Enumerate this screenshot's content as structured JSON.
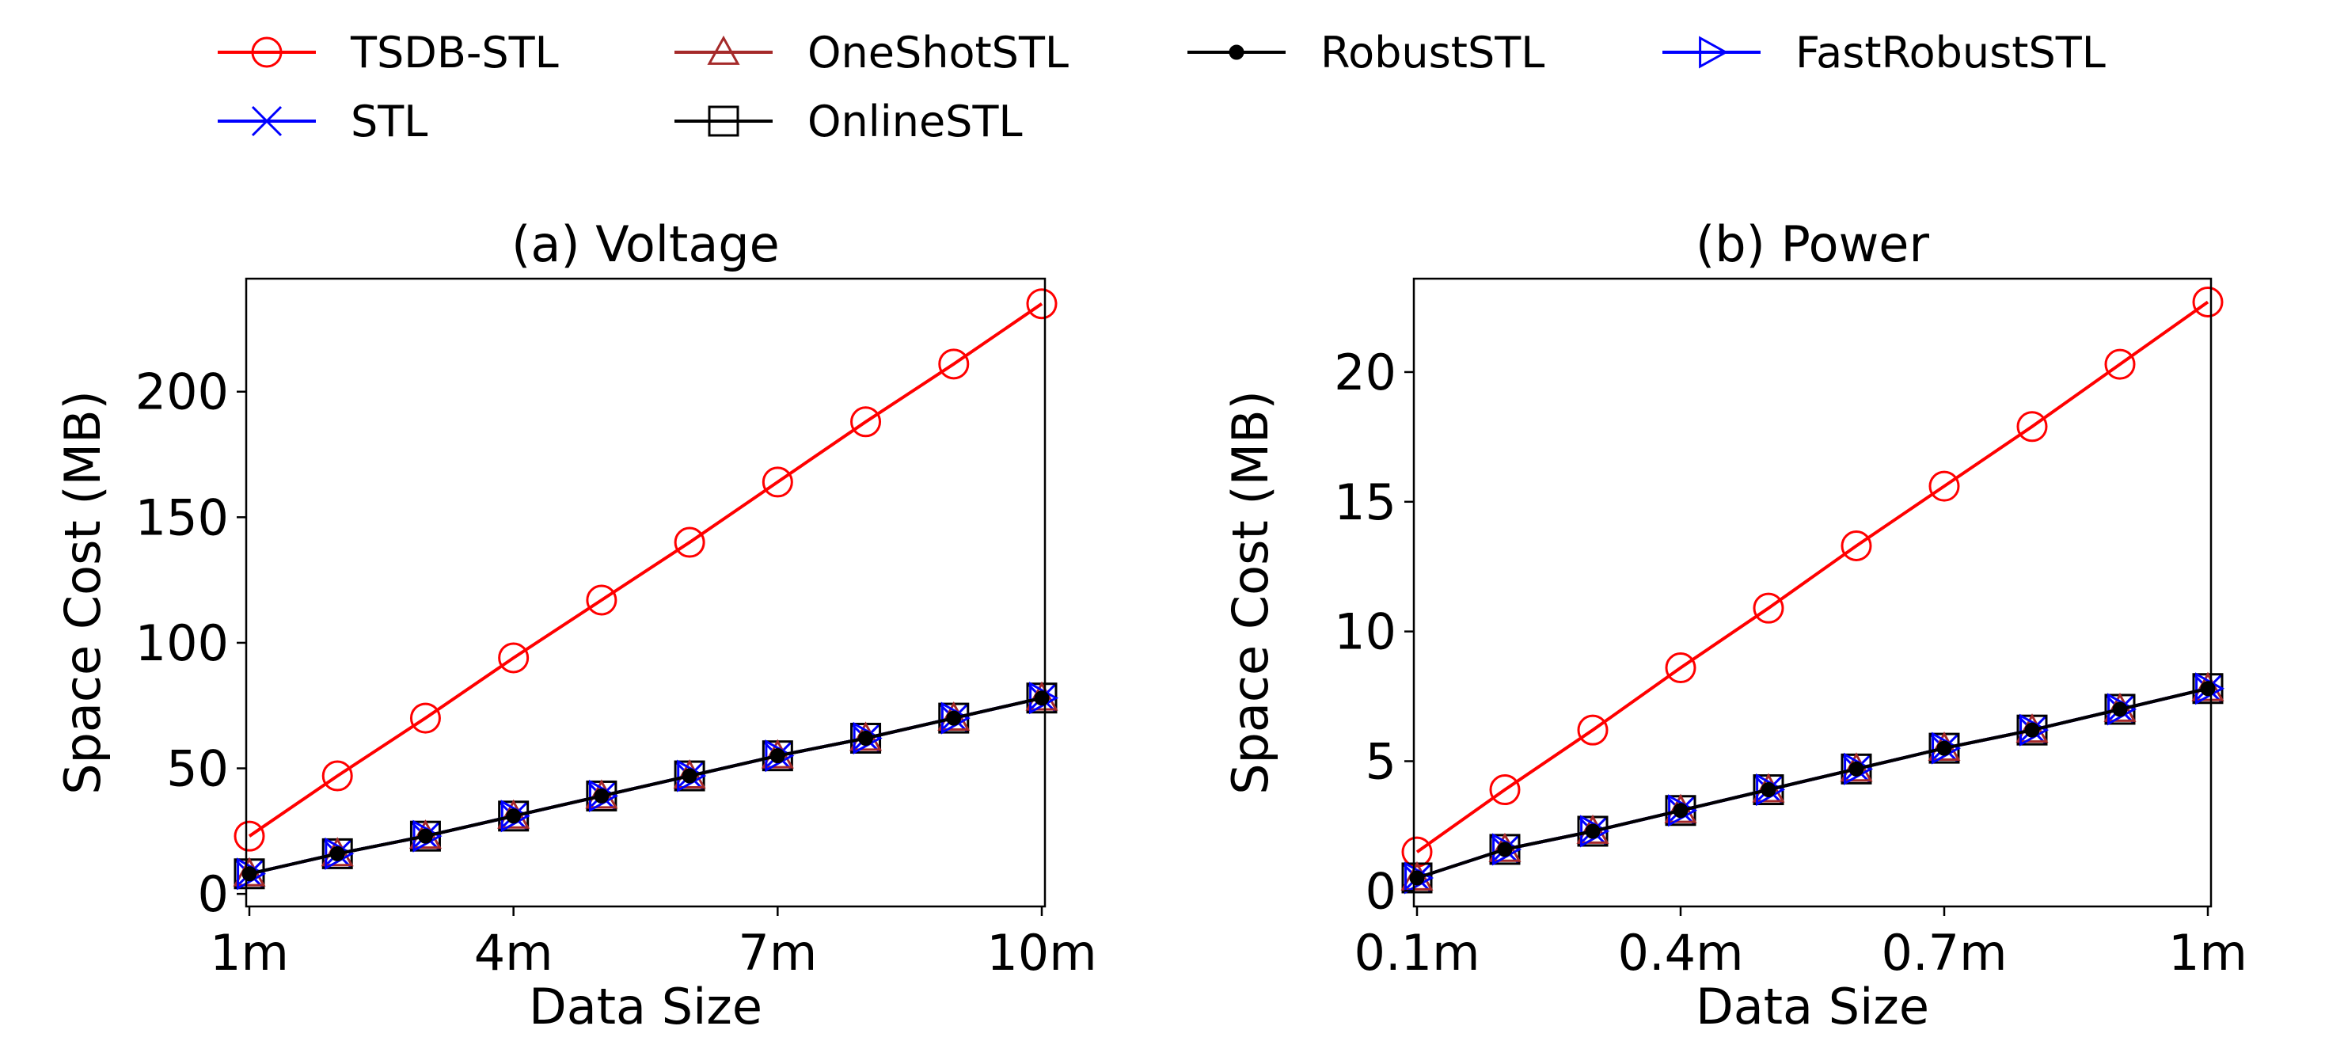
{
  "legend": {
    "placement": "top",
    "entries": [
      {
        "label": "TSDB-STL",
        "color": "#ff0000",
        "marker": "circle-open"
      },
      {
        "label": "OneShotSTL",
        "color": "#a52a2a",
        "marker": "triangle-open"
      },
      {
        "label": "RobustSTL",
        "color": "#000000",
        "marker": "dot-filled"
      },
      {
        "label": "FastRobustSTL",
        "color": "#0000ff",
        "marker": "triangle-right-open"
      },
      {
        "label": "STL",
        "color": "#0000ff",
        "marker": "x"
      },
      {
        "label": "OnlineSTL",
        "color": "#000000",
        "marker": "square-open"
      }
    ]
  },
  "chart_data": [
    {
      "type": "line",
      "title": "(a) Voltage",
      "xlabel": "Data Size",
      "ylabel": "Space Cost (MB)",
      "x": [
        1,
        2,
        3,
        4,
        5,
        6,
        7,
        8,
        9,
        10
      ],
      "xticks": [
        1,
        4,
        7,
        10
      ],
      "xtick_labels": [
        "1m",
        "4m",
        "7m",
        "10m"
      ],
      "xlim": [
        1,
        10
      ],
      "ylim": [
        -5,
        245
      ],
      "yticks": [
        0,
        50,
        100,
        150,
        200
      ],
      "ytick_labels": [
        "0",
        "50",
        "100",
        "150",
        "200"
      ],
      "grid": false,
      "series": [
        {
          "name": "TSDB-STL",
          "values": [
            23,
            47,
            70,
            94,
            117,
            140,
            164,
            188,
            211,
            235
          ]
        },
        {
          "name": "OneShotSTL",
          "values": [
            8,
            16,
            23,
            31,
            39,
            47,
            55,
            62,
            70,
            78
          ]
        },
        {
          "name": "RobustSTL",
          "values": [
            8,
            16,
            23,
            31,
            39,
            47,
            55,
            62,
            70,
            78
          ]
        },
        {
          "name": "FastRobustSTL",
          "values": [
            8,
            16,
            23,
            31,
            39,
            47,
            55,
            62,
            70,
            78
          ]
        },
        {
          "name": "STL",
          "values": [
            8,
            16,
            23,
            31,
            39,
            47,
            55,
            62,
            70,
            78
          ]
        },
        {
          "name": "OnlineSTL",
          "values": [
            8,
            16,
            23,
            31,
            39,
            47,
            55,
            62,
            70,
            78
          ]
        }
      ]
    },
    {
      "type": "line",
      "title": "(b) Power",
      "xlabel": "Data Size",
      "ylabel": "Space Cost (MB)",
      "x": [
        0.1,
        0.2,
        0.3,
        0.4,
        0.5,
        0.6,
        0.7,
        0.8,
        0.9,
        1.0
      ],
      "xticks": [
        0.1,
        0.4,
        0.7,
        1.0
      ],
      "xtick_labels": [
        "0.1m",
        "0.4m",
        "0.7m",
        "1m"
      ],
      "xlim": [
        0.1,
        1.0
      ],
      "ylim": [
        -0.6,
        23.6
      ],
      "yticks": [
        0,
        5,
        10,
        15,
        20
      ],
      "ytick_labels": [
        "0",
        "5",
        "10",
        "15",
        "20"
      ],
      "grid": false,
      "series": [
        {
          "name": "TSDB-STL",
          "values": [
            1.5,
            3.9,
            6.2,
            8.6,
            10.9,
            13.3,
            15.6,
            17.9,
            20.3,
            22.7
          ]
        },
        {
          "name": "OneShotSTL",
          "values": [
            0.5,
            1.6,
            2.3,
            3.1,
            3.9,
            4.7,
            5.5,
            6.2,
            7.0,
            7.8
          ]
        },
        {
          "name": "RobustSTL",
          "values": [
            0.5,
            1.6,
            2.3,
            3.1,
            3.9,
            4.7,
            5.5,
            6.2,
            7.0,
            7.8
          ]
        },
        {
          "name": "FastRobustSTL",
          "values": [
            0.5,
            1.6,
            2.3,
            3.1,
            3.9,
            4.7,
            5.5,
            6.2,
            7.0,
            7.8
          ]
        },
        {
          "name": "STL",
          "values": [
            0.5,
            1.6,
            2.3,
            3.1,
            3.9,
            4.7,
            5.5,
            6.2,
            7.0,
            7.8
          ]
        },
        {
          "name": "OnlineSTL",
          "values": [
            0.5,
            1.6,
            2.3,
            3.1,
            3.9,
            4.7,
            5.5,
            6.2,
            7.0,
            7.8
          ]
        }
      ]
    }
  ]
}
